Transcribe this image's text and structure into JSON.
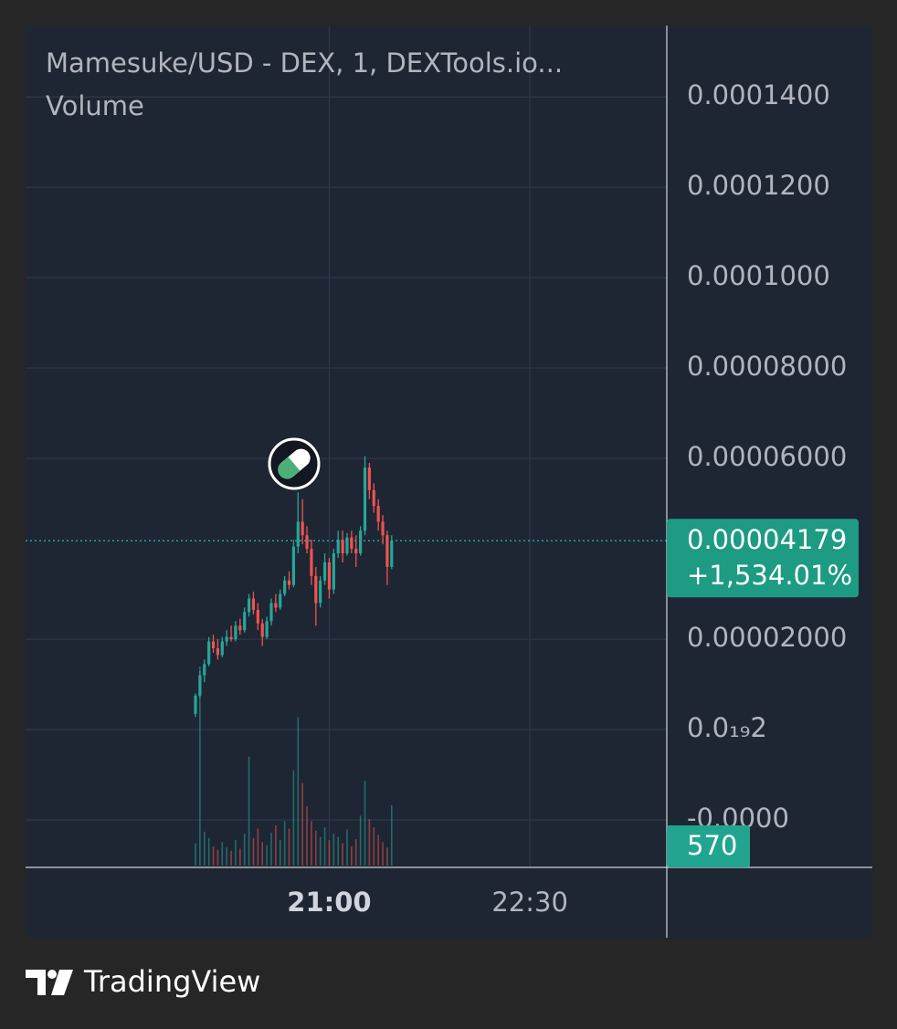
{
  "chart_data": {
    "type": "candlestick",
    "title": "Mamesuke/USD - DEX, 1, DEXTools.io...",
    "subtitle": "Volume",
    "up_color": "#26a69a",
    "down_color": "#ef5350",
    "open": [
      3.5e-06,
      7.5e-06,
      1.2e-05,
      1.45e-05,
      1.95e-05,
      1.8e-05,
      1.65e-05,
      1.95e-05,
      2.05e-05,
      2e-05,
      2.3e-05,
      2.2e-05,
      2.6e-05,
      2.9e-05,
      2.65e-05,
      2.35e-05,
      2.05e-05,
      2.4e-05,
      2.8e-05,
      2.7e-05,
      3e-05,
      3.3e-05,
      3.2e-05,
      4.05e-05,
      4.6e-05,
      4.3e-05,
      4e-05,
      3.4e-05,
      2.8e-05,
      3.3e-05,
      3.7e-05,
      3.1e-05,
      3.9e-05,
      4.2e-05,
      3.9e-05,
      4.25e-05,
      4e-05,
      3.9e-05,
      4.4e-05,
      5.8e-05,
      5.3e-05,
      4.95e-05,
      4.6e-05,
      4.3e-05,
      3.6e-05
    ],
    "high": [
      8e-06,
      1.3e-05,
      1.55e-05,
      2.05e-05,
      2.1e-05,
      2e-05,
      2.05e-05,
      2.2e-05,
      2.3e-05,
      2.4e-05,
      2.45e-05,
      2.7e-05,
      3e-05,
      3.05e-05,
      2.8e-05,
      2.45e-05,
      2.5e-05,
      2.9e-05,
      3e-05,
      3.1e-05,
      3.4e-05,
      3.5e-05,
      4.2e-05,
      5.25e-05,
      5.1e-05,
      4.5e-05,
      4.2e-05,
      3.6e-05,
      3.4e-05,
      3.9e-05,
      3.8e-05,
      4e-05,
      4.4e-05,
      4.4e-05,
      4.35e-05,
      4.4e-05,
      4.3e-05,
      4.5e-05,
      6.05e-05,
      5.9e-05,
      5.45e-05,
      5.1e-05,
      4.75e-05,
      4.4e-05,
      4.3e-05
    ],
    "low": [
      2.8e-06,
      7e-06,
      1.05e-05,
      1.4e-05,
      1.7e-05,
      1.55e-05,
      1.6e-05,
      1.85e-05,
      1.95e-05,
      1.95e-05,
      2.1e-05,
      2.15e-05,
      2.5e-05,
      2.55e-05,
      2.2e-05,
      1.85e-05,
      2e-05,
      2.3e-05,
      2.6e-05,
      2.65e-05,
      2.95e-05,
      3.1e-05,
      3.15e-05,
      3.9e-05,
      4.1e-05,
      3.9e-05,
      3.2e-05,
      2.3e-05,
      2.7e-05,
      3.2e-05,
      2.9e-05,
      3e-05,
      3.8e-05,
      3.7e-05,
      3.85e-05,
      3.9e-05,
      3.6e-05,
      3.85e-05,
      4.3e-05,
      5.1e-05,
      4.8e-05,
      4.4e-05,
      4.1e-05,
      3.2e-05,
      3.55e-05
    ],
    "close": [
      7.5e-06,
      1.2e-05,
      1.45e-05,
      1.95e-05,
      1.8e-05,
      1.65e-05,
      1.95e-05,
      2.05e-05,
      2e-05,
      2.3e-05,
      2.2e-05,
      2.6e-05,
      2.9e-05,
      2.65e-05,
      2.35e-05,
      2.05e-05,
      2.4e-05,
      2.8e-05,
      2.7e-05,
      3e-05,
      3.3e-05,
      3.2e-05,
      4.05e-05,
      4.6e-05,
      4.3e-05,
      4e-05,
      3.4e-05,
      2.8e-05,
      3.3e-05,
      3.7e-05,
      3.1e-05,
      3.9e-05,
      4.2e-05,
      3.9e-05,
      4.25e-05,
      4e-05,
      3.9e-05,
      4.4e-05,
      5.8e-05,
      5.3e-05,
      4.95e-05,
      4.6e-05,
      4.3e-05,
      3.6e-05,
      4.179e-05
    ],
    "volume": [
      210,
      1880,
      320,
      260,
      180,
      150,
      220,
      170,
      140,
      240,
      160,
      300,
      1030,
      260,
      350,
      220,
      190,
      310,
      380,
      240,
      420,
      350,
      900,
      1400,
      780,
      560,
      420,
      330,
      270,
      360,
      240,
      300,
      270,
      210,
      340,
      180,
      250,
      470,
      800,
      440,
      360,
      290,
      220,
      170,
      570
    ],
    "volume_label": "570",
    "last_price": {
      "value": 4.179e-05,
      "label": "0.00004179"
    },
    "change": "+1,534.01%",
    "xlim": [
      -38.1,
      105.7
    ],
    "xticks": [
      {
        "value": 30,
        "label": "21:00"
      },
      {
        "value": 75,
        "label": "22:30"
      }
    ],
    "ylim": [
      -3.05e-05,
      0.0001558
    ],
    "yticks": [
      {
        "value": -2e-05,
        "label": "-0.0000"
      },
      {
        "value": 2e-20,
        "label": "0.0₁₉2"
      },
      {
        "value": 2e-05,
        "label": "0.00002000"
      },
      {
        "value": 6e-05,
        "label": "0.00006000"
      },
      {
        "value": 8e-05,
        "label": "0.00008000"
      },
      {
        "value": 0.0001,
        "label": "0.0001000"
      },
      {
        "value": 0.00012,
        "label": "0.0001200"
      },
      {
        "value": 0.00014,
        "label": "0.0001400"
      }
    ],
    "grid": true
  },
  "footer": {
    "brand": "TradingView"
  }
}
